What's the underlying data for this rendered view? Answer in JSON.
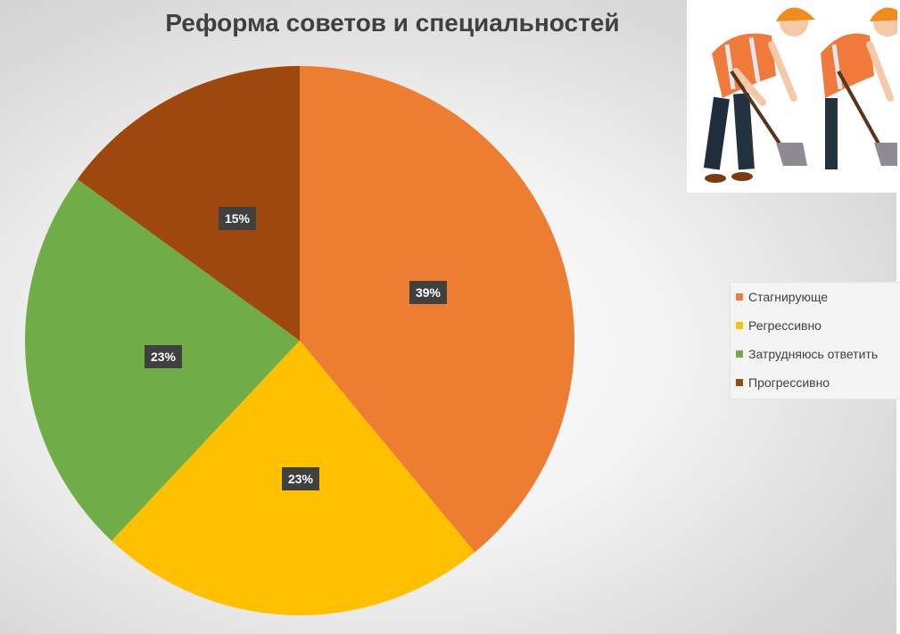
{
  "chart_data": {
    "type": "pie",
    "title": "Реформа советов и специальностей",
    "slices": [
      {
        "label": "Стагнирующе",
        "value": 39,
        "data_label": "39%",
        "color": "#ED7D31"
      },
      {
        "label": "Регрессивно",
        "value": 23,
        "data_label": "23%",
        "color": "#FFC000"
      },
      {
        "label": "Затрудняюсь ответить",
        "value": 23,
        "data_label": "23%",
        "color": "#70AD47"
      },
      {
        "label": "Прогрессивно",
        "value": 15,
        "data_label": "15%",
        "color": "#9E480E"
      }
    ],
    "legend_placement": "right"
  },
  "decoration": {
    "image": "construction-workers-illustration",
    "count": 2
  }
}
